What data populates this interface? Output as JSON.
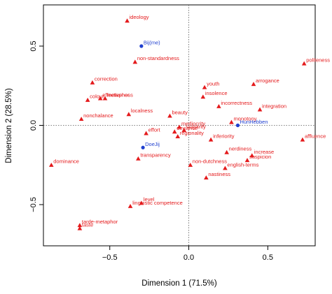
{
  "chart_data": {
    "type": "scatter",
    "title": "",
    "xlabel": "Dimension 1 (71.5%)",
    "ylabel": "Dimension 2 (28.5%)",
    "xlim": [
      -0.92,
      0.8
    ],
    "ylim": [
      -0.76,
      0.76
    ],
    "x_ticks": [
      -0.5,
      0.0,
      0.5
    ],
    "y_ticks": [
      -0.5,
      0.0,
      0.5
    ],
    "x_tick_labels": [
      "−0.5",
      "0.0",
      "0.5"
    ],
    "y_tick_labels": [
      "−0.5",
      "0.0",
      "0.5"
    ],
    "grid": false,
    "reference_lines": "dotted lines at x = 0 and y = 0",
    "colors": {
      "triangles": "#e41a1c",
      "circles": "#1f3fcf"
    },
    "series": [
      {
        "marker": "triangle",
        "points": [
          {
            "label": "ideology",
            "x": -0.39,
            "y": 0.66
          },
          {
            "label": "non-standardness",
            "x": -0.34,
            "y": 0.4
          },
          {
            "label": "politeness",
            "x": 0.73,
            "y": 0.39
          },
          {
            "label": "youth",
            "x": 0.1,
            "y": 0.24
          },
          {
            "label": "arrogance",
            "x": 0.41,
            "y": 0.26
          },
          {
            "label": "correction",
            "x": -0.61,
            "y": 0.27
          },
          {
            "label": "insolence",
            "x": 0.09,
            "y": 0.18
          },
          {
            "label": "colour",
            "x": -0.64,
            "y": 0.16
          },
          {
            "label": "effectiveness",
            "x": -0.56,
            "y": 0.17
          },
          {
            "label": "metaphor",
            "x": -0.53,
            "y": 0.17
          },
          {
            "label": "incorrectness",
            "x": 0.19,
            "y": 0.12
          },
          {
            "label": "integration",
            "x": 0.45,
            "y": 0.1
          },
          {
            "label": "localness",
            "x": -0.38,
            "y": 0.07
          },
          {
            "label": "beauty",
            "x": -0.12,
            "y": 0.06
          },
          {
            "label": "nonchalance",
            "x": -0.68,
            "y": 0.04
          },
          {
            "label": "monotony",
            "x": 0.27,
            "y": 0.02
          },
          {
            "label": "mediocrity",
            "x": -0.06,
            "y": -0.01
          },
          {
            "label": "effort",
            "x": -0.27,
            "y": -0.05
          },
          {
            "label": "vulgarity",
            "x": -0.03,
            "y": -0.03
          },
          {
            "label": "deviance",
            "x": -0.09,
            "y": -0.04
          },
          {
            "label": "regionality",
            "x": -0.07,
            "y": -0.07
          },
          {
            "label": "inferiority",
            "x": 0.14,
            "y": -0.09
          },
          {
            "label": "affluence",
            "x": 0.72,
            "y": -0.09
          },
          {
            "label": "nerdiness",
            "x": 0.24,
            "y": -0.17
          },
          {
            "label": "increase",
            "x": 0.4,
            "y": -0.19
          },
          {
            "label": "transparency",
            "x": -0.32,
            "y": -0.21
          },
          {
            "label": "suspicion",
            "x": 0.37,
            "y": -0.22
          },
          {
            "label": "non-dutchness",
            "x": 0.01,
            "y": -0.25
          },
          {
            "label": "english-terms",
            "x": 0.23,
            "y": -0.27
          },
          {
            "label": "dominance",
            "x": -0.87,
            "y": -0.25
          },
          {
            "label": "nastiness",
            "x": 0.11,
            "y": -0.33
          },
          {
            "label": "level",
            "x": -0.3,
            "y": -0.49
          },
          {
            "label": "linguistic competence",
            "x": -0.37,
            "y": -0.51
          },
          {
            "label": "tarde-metaphor",
            "x": -0.69,
            "y": -0.63
          },
          {
            "label": "taste",
            "x": -0.69,
            "y": -0.65
          }
        ]
      },
      {
        "marker": "circle",
        "points": [
          {
            "label": "Bij(me)",
            "x": -0.3,
            "y": 0.5
          },
          {
            "label": "HunHebben",
            "x": 0.31,
            "y": 0.0
          },
          {
            "label": "DoeJij",
            "x": -0.29,
            "y": -0.14
          }
        ]
      }
    ]
  }
}
